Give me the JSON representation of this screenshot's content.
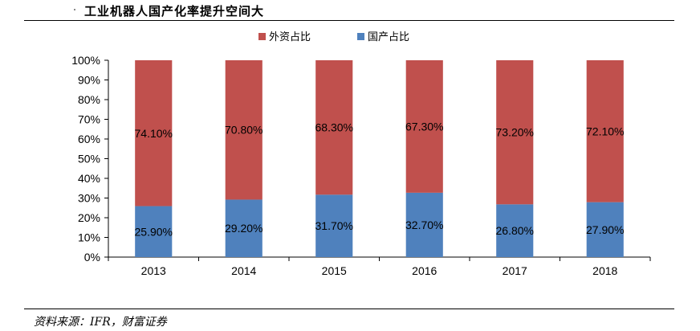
{
  "header": {
    "title": "工业机器人国产化率提升空间大"
  },
  "footer": {
    "source": "资料来源：IFR，财富证券"
  },
  "colors": {
    "foreign": "#c0504d",
    "domestic": "#4f81bd",
    "axis": "#000000"
  },
  "chart_data": {
    "type": "bar",
    "stacked": true,
    "categories": [
      "2013",
      "2014",
      "2015",
      "2016",
      "2017",
      "2018"
    ],
    "series": [
      {
        "name": "国产占比",
        "values": [
          25.9,
          29.2,
          31.7,
          32.7,
          26.8,
          27.9
        ],
        "labels": [
          "25.90%",
          "29.20%",
          "31.70%",
          "32.70%",
          "26.80%",
          "27.90%"
        ]
      },
      {
        "name": "外资占比",
        "values": [
          74.1,
          70.8,
          68.3,
          67.3,
          73.2,
          72.1
        ],
        "labels": [
          "74.10%",
          "70.80%",
          "68.30%",
          "67.30%",
          "73.20%",
          "72.10%"
        ]
      }
    ],
    "yticks": [
      "0%",
      "10%",
      "20%",
      "30%",
      "40%",
      "50%",
      "60%",
      "70%",
      "80%",
      "90%",
      "100%"
    ],
    "ylim": [
      0,
      100
    ],
    "legend": [
      "外资占比",
      "国产占比"
    ],
    "legend_position": "top"
  }
}
